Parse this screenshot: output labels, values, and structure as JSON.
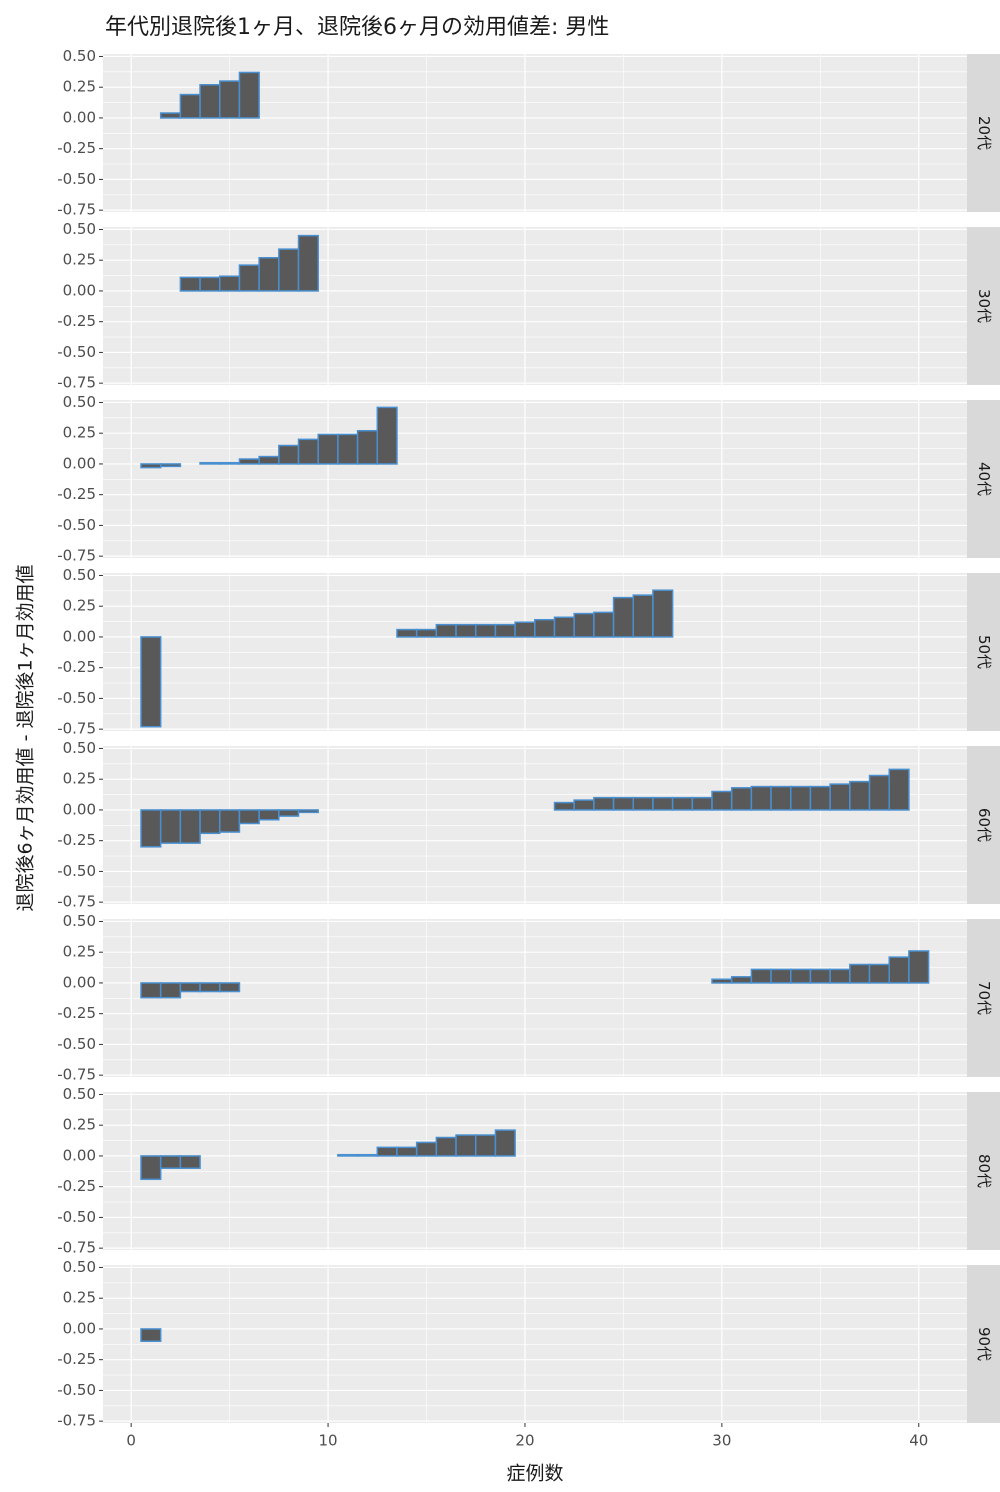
{
  "chart_data": {
    "type": "bar",
    "title": "年代別退院後1ヶ月、退院後6ヶ月の効用値差: 男性",
    "x_label": "症例数",
    "y_label": "退院後6ヶ月効用値 - 退院後1ヶ月効用値",
    "xlim": [
      -1.43,
      42.45
    ],
    "xticks": [
      0,
      10,
      20,
      30,
      40
    ],
    "ylim": [
      -0.765,
      0.52
    ],
    "yticks": [
      {
        "value": 0.5,
        "label": "0.50"
      },
      0.25,
      {
        "value": 0,
        "label": "0.00"
      },
      -0.25,
      {
        "value": -0.5,
        "label": "-0.50"
      },
      -0.75
    ],
    "grid": true,
    "color": "#595959",
    "edge_color": "#4a90d0",
    "facets": [
      {
        "name": "20代",
        "x": [
          1,
          2,
          3,
          4,
          5,
          6
        ],
        "values": [
          0,
          0.04,
          0.19,
          0.27,
          0.3,
          0.37
        ]
      },
      {
        "name": "30代",
        "x": [
          1,
          2,
          3,
          4,
          5,
          6,
          7,
          8,
          9
        ],
        "values": [
          0,
          0,
          0.11,
          0.11,
          0.12,
          0.21,
          0.27,
          0.34,
          0.45
        ]
      },
      {
        "name": "40代",
        "x": [
          1,
          2,
          3,
          4,
          5,
          6,
          7,
          8,
          9,
          10,
          11,
          12,
          13
        ],
        "values": [
          -0.03,
          -0.02,
          0,
          0.01,
          0.01,
          0.04,
          0.06,
          0.15,
          0.2,
          0.24,
          0.24,
          0.27,
          0.46
        ]
      },
      {
        "name": "50代",
        "x": [
          1,
          2,
          3,
          4,
          5,
          6,
          7,
          8,
          9,
          10,
          11,
          12,
          13,
          14,
          15,
          16,
          17,
          18,
          19,
          20,
          21,
          22,
          23,
          24,
          25,
          26,
          27
        ],
        "values": [
          -0.73,
          0,
          0,
          0,
          0,
          0,
          0,
          0,
          0,
          0,
          0,
          0,
          0,
          0.06,
          0.06,
          0.1,
          0.1,
          0.1,
          0.1,
          0.12,
          0.14,
          0.16,
          0.19,
          0.2,
          0.32,
          0.34,
          0.38
        ]
      },
      {
        "name": "60代",
        "x": [
          1,
          2,
          3,
          4,
          5,
          6,
          7,
          8,
          9,
          10,
          11,
          12,
          13,
          14,
          15,
          16,
          17,
          18,
          19,
          20,
          21,
          22,
          23,
          24,
          25,
          26,
          27,
          28,
          29,
          30,
          31,
          32,
          33,
          34,
          35,
          36,
          37,
          38,
          39
        ],
        "values": [
          -0.3,
          -0.27,
          -0.27,
          -0.19,
          -0.18,
          -0.11,
          -0.08,
          -0.05,
          -0.02,
          0,
          0,
          0,
          0,
          0,
          0,
          0,
          0,
          0,
          0,
          0,
          0,
          0.06,
          0.08,
          0.1,
          0.1,
          0.1,
          0.1,
          0.1,
          0.1,
          0.15,
          0.18,
          0.19,
          0.19,
          0.19,
          0.19,
          0.21,
          0.23,
          0.28,
          0.33
        ]
      },
      {
        "name": "70代",
        "x": [
          1,
          2,
          3,
          4,
          5,
          6,
          7,
          8,
          9,
          10,
          11,
          12,
          13,
          14,
          15,
          16,
          17,
          18,
          19,
          20,
          21,
          22,
          23,
          24,
          25,
          26,
          27,
          28,
          29,
          30,
          31,
          32,
          33,
          34,
          35,
          36,
          37,
          38,
          39,
          40
        ],
        "values": [
          -0.12,
          -0.12,
          -0.07,
          -0.07,
          -0.07,
          0,
          0,
          0,
          0,
          0,
          0,
          0,
          0,
          0,
          0,
          0,
          0,
          0,
          0,
          0,
          0,
          0,
          0,
          0,
          0,
          0,
          0,
          0,
          0,
          0.03,
          0.05,
          0.11,
          0.11,
          0.11,
          0.11,
          0.11,
          0.15,
          0.15,
          0.21,
          0.26
        ]
      },
      {
        "name": "80代",
        "x": [
          1,
          2,
          3,
          4,
          5,
          6,
          7,
          8,
          9,
          10,
          11,
          12,
          13,
          14,
          15,
          16,
          17,
          18,
          19
        ],
        "values": [
          -0.19,
          -0.1,
          -0.1,
          0,
          0,
          0,
          0,
          0,
          0,
          0,
          0.01,
          0.01,
          0.07,
          0.07,
          0.11,
          0.15,
          0.17,
          0.17,
          0.21
        ]
      },
      {
        "name": "90代",
        "x": [
          1
        ],
        "values": [
          -0.1
        ]
      }
    ]
  }
}
